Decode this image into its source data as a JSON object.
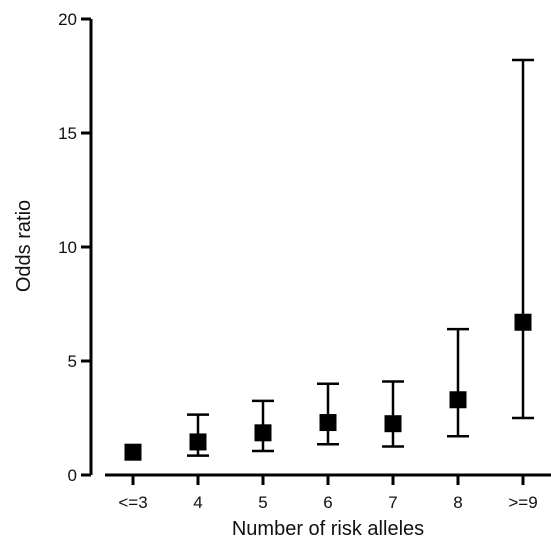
{
  "chart_data": {
    "type": "scatter",
    "title": "",
    "xlabel": "Number of risk alleles",
    "ylabel": "Odds ratio",
    "categories": [
      "<=3",
      "4",
      "5",
      "6",
      "7",
      "8",
      ">=9"
    ],
    "values": [
      1.0,
      1.45,
      1.85,
      2.3,
      2.25,
      3.3,
      6.7
    ],
    "ci_lower": [
      null,
      0.85,
      1.05,
      1.35,
      1.25,
      1.7,
      2.5
    ],
    "ci_upper": [
      null,
      2.65,
      3.25,
      4.0,
      4.1,
      6.4,
      18.2
    ],
    "ylim": [
      0,
      20
    ],
    "yticks": [
      0,
      5,
      10,
      15,
      20
    ],
    "marker": "square",
    "color": "#000000",
    "grid": false,
    "legend": "none"
  }
}
